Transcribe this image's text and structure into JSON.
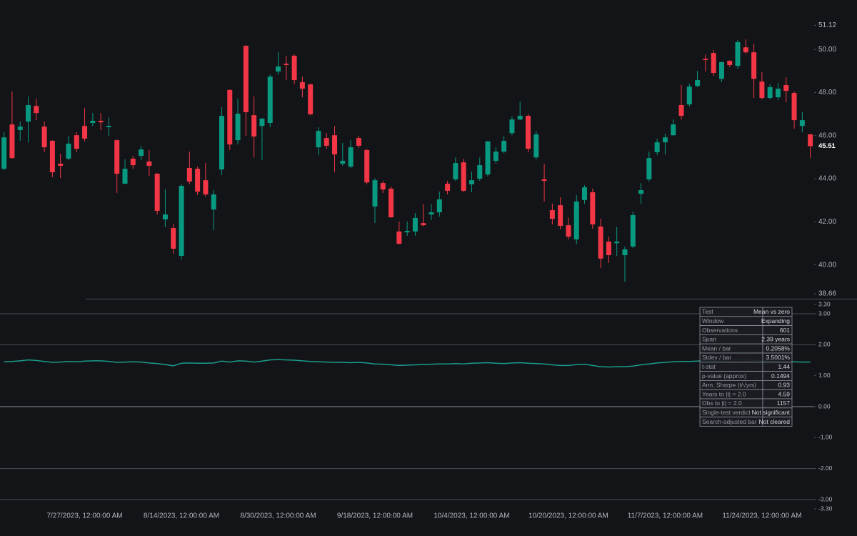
{
  "chart_data": [
    {
      "type": "candlestick",
      "categories": [
        null,
        null,
        null,
        null,
        null,
        null,
        null,
        null,
        null,
        null,
        "7/27/2023, 12:00:00 AM",
        null,
        null,
        null,
        null,
        null,
        null,
        null,
        null,
        null,
        null,
        null,
        "8/14/2023, 12:00:00 AM",
        null,
        null,
        null,
        null,
        null,
        null,
        null,
        null,
        null,
        null,
        null,
        "8/30/2023, 12:00:00 AM",
        null,
        null,
        null,
        null,
        null,
        null,
        null,
        null,
        null,
        null,
        null,
        "9/18/2023, 12:00:00 AM",
        null,
        null,
        null,
        null,
        null,
        null,
        null,
        null,
        null,
        null,
        null,
        "10/4/2023, 12:00:00 AM",
        null,
        null,
        null,
        null,
        null,
        null,
        null,
        null,
        null,
        null,
        null,
        "10/20/2023, 12:00:00 AM",
        null,
        null,
        null,
        null,
        null,
        null,
        null,
        null,
        null,
        null,
        null,
        "11/7/2023, 12:00:00 AM",
        null,
        null,
        null,
        null,
        null,
        null,
        null,
        null,
        null,
        null,
        null,
        "11/24/2023, 12:00:00 AM",
        null,
        null,
        null,
        null,
        null,
        null
      ],
      "open": [
        44.46,
        46.52,
        46.26,
        46.65,
        47.38,
        46.42,
        45.76,
        44.7,
        44.93,
        46.02,
        46.45,
        46.59,
        46.69,
        46.39,
        45.79,
        43.77,
        44.93,
        45.06,
        44.8,
        44.23,
        42.11,
        41.71,
        40.42,
        44.5,
        44.46,
        43.93,
        42.57,
        44.43,
        48.12,
        45.79,
        50.17,
        46.95,
        46.45,
        46.59,
        48.98,
        49.34,
        49.71,
        48.48,
        48.38,
        45.46,
        45.89,
        46.02,
        44.7,
        44.56,
        45.89,
        45.33,
        42.71,
        43.8,
        43.54,
        41.55,
        41.51,
        41.55,
        41.94,
        42.34,
        42.44,
        43.77,
        43.97,
        44.76,
        43.74,
        44.0,
        44.2,
        44.83,
        45.26,
        46.12,
        46.75,
        46.92,
        44.99,
        43.97,
        42.54,
        42.77,
        41.84,
        41.18,
        43.01,
        43.37,
        41.78,
        41.08,
        41.01,
        40.45,
        40.85,
        43.3,
        43.97,
        45.23,
        45.69,
        46.02,
        47.42,
        47.45,
        48.31,
        49.57,
        49.84,
        48.64,
        49.47,
        49.24,
        50.1,
        49.87,
        48.51,
        47.75,
        47.78,
        48.35,
        47.98,
        46.45,
        46.06
      ],
      "high": [
        46.16,
        48.05,
        46.65,
        47.82,
        47.72,
        46.65,
        45.79,
        45.16,
        45.99,
        46.16,
        47.28,
        47.05,
        47.05,
        46.85,
        45.82,
        44.9,
        45.06,
        45.53,
        45.33,
        44.26,
        43.5,
        41.91,
        43.74,
        45.26,
        44.56,
        44.73,
        43.47,
        47.32,
        48.15,
        47.72,
        50.2,
        47.82,
        46.82,
        48.84,
        49.87,
        49.71,
        49.77,
        48.74,
        48.41,
        46.39,
        46.12,
        46.45,
        45.66,
        45.79,
        45.99,
        45.39,
        44.03,
        43.9,
        43.64,
        42.01,
        42.01,
        42.41,
        42.81,
        42.81,
        43.4,
        43.9,
        44.99,
        44.93,
        44.33,
        44.99,
        45.76,
        45.46,
        45.99,
        46.89,
        47.58,
        46.99,
        46.22,
        44.7,
        42.84,
        43.14,
        42.18,
        43.24,
        43.7,
        43.54,
        42.14,
        41.31,
        41.75,
        40.85,
        42.48,
        43.8,
        45.26,
        45.86,
        46.09,
        46.75,
        48.35,
        48.41,
        49.01,
        49.77,
        49.97,
        49.44,
        49.5,
        50.44,
        50.47,
        50.27,
        48.94,
        48.38,
        48.45,
        48.71,
        48.05,
        47.09,
        46.09
      ],
      "low": [
        44.4,
        44.93,
        45.76,
        45.69,
        46.72,
        45.23,
        44.07,
        44.03,
        44.86,
        45.23,
        45.73,
        46.45,
        46.26,
        45.99,
        43.34,
        43.74,
        44.46,
        44.86,
        44.13,
        42.34,
        41.75,
        40.52,
        40.25,
        43.74,
        43.24,
        43.17,
        41.61,
        44.17,
        45.33,
        45.59,
        45.99,
        44.99,
        44.86,
        46.39,
        48.84,
        48.58,
        48.38,
        47.78,
        46.95,
        45.09,
        45.39,
        44.3,
        44.6,
        44.5,
        45.43,
        43.74,
        41.94,
        43.34,
        42.18,
        40.95,
        41.35,
        41.35,
        41.78,
        42.08,
        42.24,
        43.27,
        43.9,
        43.37,
        43.37,
        43.9,
        44.1,
        44.7,
        45.19,
        46.02,
        46.72,
        45.23,
        44.9,
        42.94,
        41.88,
        41.65,
        41.18,
        40.95,
        42.84,
        41.68,
        39.85,
        40.09,
        40.42,
        39.22,
        40.78,
        42.84,
        43.87,
        45.09,
        45.13,
        45.99,
        46.75,
        47.35,
        48.25,
        48.98,
        48.78,
        48.48,
        49.18,
        49.11,
        49.8,
        47.75,
        47.68,
        47.68,
        47.65,
        47.55,
        46.32,
        46.16,
        44.96
      ],
      "close": [
        45.92,
        44.96,
        46.42,
        47.42,
        47.05,
        45.46,
        44.3,
        44.6,
        45.63,
        45.39,
        45.86,
        46.69,
        46.62,
        46.45,
        44.23,
        44.46,
        44.63,
        45.36,
        44.6,
        42.51,
        42.34,
        40.75,
        43.67,
        43.87,
        43.4,
        43.27,
        43.27,
        46.92,
        45.59,
        47.02,
        47.09,
        45.96,
        46.79,
        48.74,
        49.21,
        49.28,
        48.58,
        48.18,
        46.99,
        46.22,
        45.53,
        45.13,
        44.83,
        45.46,
        45.53,
        43.83,
        43.93,
        43.5,
        42.21,
        40.98,
        41.58,
        42.18,
        41.84,
        42.44,
        43.04,
        43.44,
        44.73,
        43.44,
        43.93,
        44.63,
        45.73,
        45.26,
        45.76,
        46.75,
        46.92,
        45.39,
        46.06,
        43.9,
        42.14,
        41.81,
        41.31,
        42.94,
        43.6,
        41.88,
        40.29,
        40.45,
        41.08,
        40.72,
        42.31,
        43.47,
        44.96,
        45.69,
        45.92,
        46.52,
        46.92,
        48.28,
        48.58,
        49.51,
        48.91,
        49.41,
        49.28,
        50.34,
        49.87,
        48.64,
        47.75,
        48.25,
        48.18,
        48.08,
        46.72,
        46.72,
        45.51
      ],
      "up_color": "#089981",
      "down_color": "#f23645",
      "ylim": [
        38.66,
        51.12
      ],
      "yticks": [
        38.66,
        {
          "value": 40,
          "label": "40.00"
        },
        {
          "value": 42,
          "label": "42.00"
        },
        {
          "value": 44,
          "label": "44.00"
        },
        {
          "value": 46,
          "label": "46.00"
        },
        {
          "value": 48,
          "label": "48.00"
        },
        {
          "value": 50,
          "label": "50.00"
        },
        51.12
      ]
    },
    {
      "type": "line",
      "values": [
        1.45,
        1.46,
        1.48,
        1.51,
        1.49,
        1.46,
        1.43,
        1.44,
        1.46,
        1.45,
        1.47,
        1.48,
        1.48,
        1.46,
        1.43,
        1.44,
        1.45,
        1.44,
        1.41,
        1.39,
        1.36,
        1.32,
        1.4,
        1.41,
        1.4,
        1.4,
        1.41,
        1.47,
        1.44,
        1.48,
        1.47,
        1.44,
        1.47,
        1.51,
        1.52,
        1.51,
        1.5,
        1.48,
        1.46,
        1.45,
        1.44,
        1.43,
        1.43,
        1.42,
        1.43,
        1.41,
        1.38,
        1.37,
        1.35,
        1.33,
        1.34,
        1.35,
        1.36,
        1.37,
        1.38,
        1.38,
        1.39,
        1.38,
        1.4,
        1.41,
        1.42,
        1.4,
        1.39,
        1.41,
        1.42,
        1.4,
        1.39,
        1.38,
        1.35,
        1.33,
        1.33,
        1.36,
        1.37,
        1.33,
        1.29,
        1.28,
        1.29,
        1.29,
        1.31,
        1.35,
        1.38,
        1.41,
        1.43,
        1.45,
        1.46,
        1.46,
        1.47,
        1.5,
        1.49,
        1.5,
        1.52,
        1.53,
        1.52,
        1.5,
        1.48,
        1.47,
        1.46,
        1.45,
        1.45,
        1.44,
        1.44
      ],
      "color": "#1a9c8a",
      "ylim": [
        -3.3,
        3.3
      ],
      "yticks": [
        {
          "value": 3.3,
          "label": "3.30"
        },
        {
          "value": 3,
          "label": "3.00"
        },
        {
          "value": 2,
          "label": "2.00"
        },
        {
          "value": 1,
          "label": "1.00"
        },
        {
          "value": 0,
          "label": "0.00"
        },
        {
          "value": -1,
          "label": "-1.00"
        },
        {
          "value": -2,
          "label": "-2.00"
        },
        {
          "value": -3,
          "label": "-3.00"
        },
        {
          "value": -3.3,
          "label": "-3.30"
        }
      ],
      "hlines": [
        3,
        2,
        0,
        -2,
        -3
      ]
    }
  ],
  "table": {
    "rows": [
      [
        "Test",
        "Mean vs zero"
      ],
      [
        "Window",
        "Expanding"
      ],
      [
        "Observations",
        "601"
      ],
      [
        "Span",
        "2.39 years"
      ],
      [
        "Mean / bar",
        "0.2058%"
      ],
      [
        "Stdev / bar",
        "3.5001%"
      ],
      [
        "t-stat",
        "1.44"
      ],
      [
        "p-value (approx)",
        "0.1494"
      ],
      [
        "Ann. Sharpe (t/√yrs)",
        "0.93"
      ],
      [
        "Years to |t| = 2.0",
        "4.59"
      ],
      [
        "Obs to |t| = 2.0",
        "1157"
      ],
      [
        "Single-test verdict",
        "Not significant"
      ],
      [
        "Search-adjusted bar",
        "Not cleared"
      ]
    ]
  }
}
